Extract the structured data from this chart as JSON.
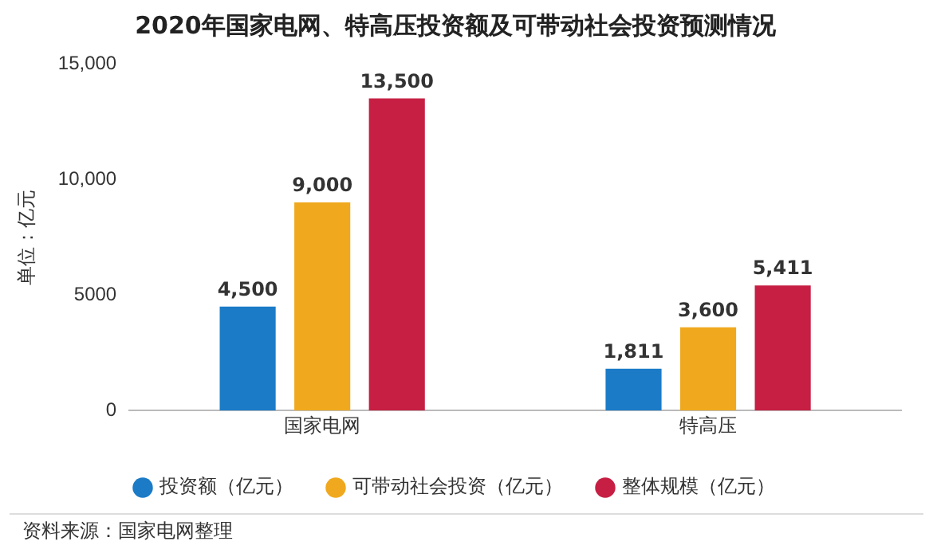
{
  "chart_data": {
    "type": "bar",
    "title": "2020年国家电网、特高压投资额及可带动社会投资预测情况",
    "ylabel": "单位：亿元",
    "categories": [
      "国家电网",
      "特高压"
    ],
    "series": [
      {
        "name": "投资额（亿元）",
        "color": "#1b7bc7",
        "values": [
          4500,
          1811
        ],
        "value_labels": [
          "4,500",
          "1,811"
        ]
      },
      {
        "name": "可带动社会投资（亿元）",
        "color": "#f0a91e",
        "values": [
          9000,
          3600
        ],
        "value_labels": [
          "9,000",
          "3,600"
        ]
      },
      {
        "name": "整体规模（亿元）",
        "color": "#c61f43",
        "values": [
          13500,
          5411
        ],
        "value_labels": [
          "13,500",
          "5,411"
        ]
      }
    ],
    "ylim": [
      0,
      15000
    ],
    "yticks": [
      0,
      5000,
      {
        "value": 10000,
        "label": "10,000"
      },
      {
        "value": 15000,
        "label": "15,000"
      }
    ],
    "grid": false,
    "legend": "bottom",
    "annotations": [
      "资料来源：国家电网整理"
    ]
  }
}
